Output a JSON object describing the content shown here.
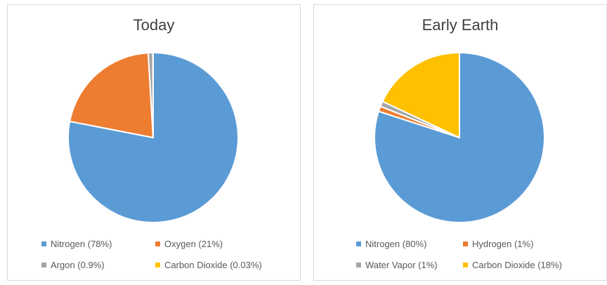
{
  "chart_data": [
    {
      "type": "pie",
      "title": "Today",
      "categories": [
        "Nitrogen",
        "Oxygen",
        "Argon",
        "Carbon Dioxide"
      ],
      "values": [
        78,
        21,
        0.9,
        0.03
      ],
      "legend_labels": [
        "Nitrogen (78%)",
        "Oxygen (21%)",
        "Argon (0.9%)",
        "Carbon Dioxide (0.03%)"
      ],
      "colors": [
        "#5b9bd5",
        "#ed7d31",
        "#a5a5a5",
        "#ffc000"
      ],
      "legend_position": "bottom"
    },
    {
      "type": "pie",
      "title": "Early Earth",
      "categories": [
        "Nitrogen",
        "Hydrogen",
        "Water Vapor",
        "Carbon Dioxide"
      ],
      "values": [
        80,
        1,
        1,
        18
      ],
      "legend_labels": [
        "Nitrogen (80%)",
        "Hydrogen (1%)",
        "Water Vapor (1%)",
        "Carbon Dioxide (18%)"
      ],
      "colors": [
        "#5b9bd5",
        "#ed7d31",
        "#a5a5a5",
        "#ffc000"
      ],
      "legend_position": "bottom"
    }
  ]
}
